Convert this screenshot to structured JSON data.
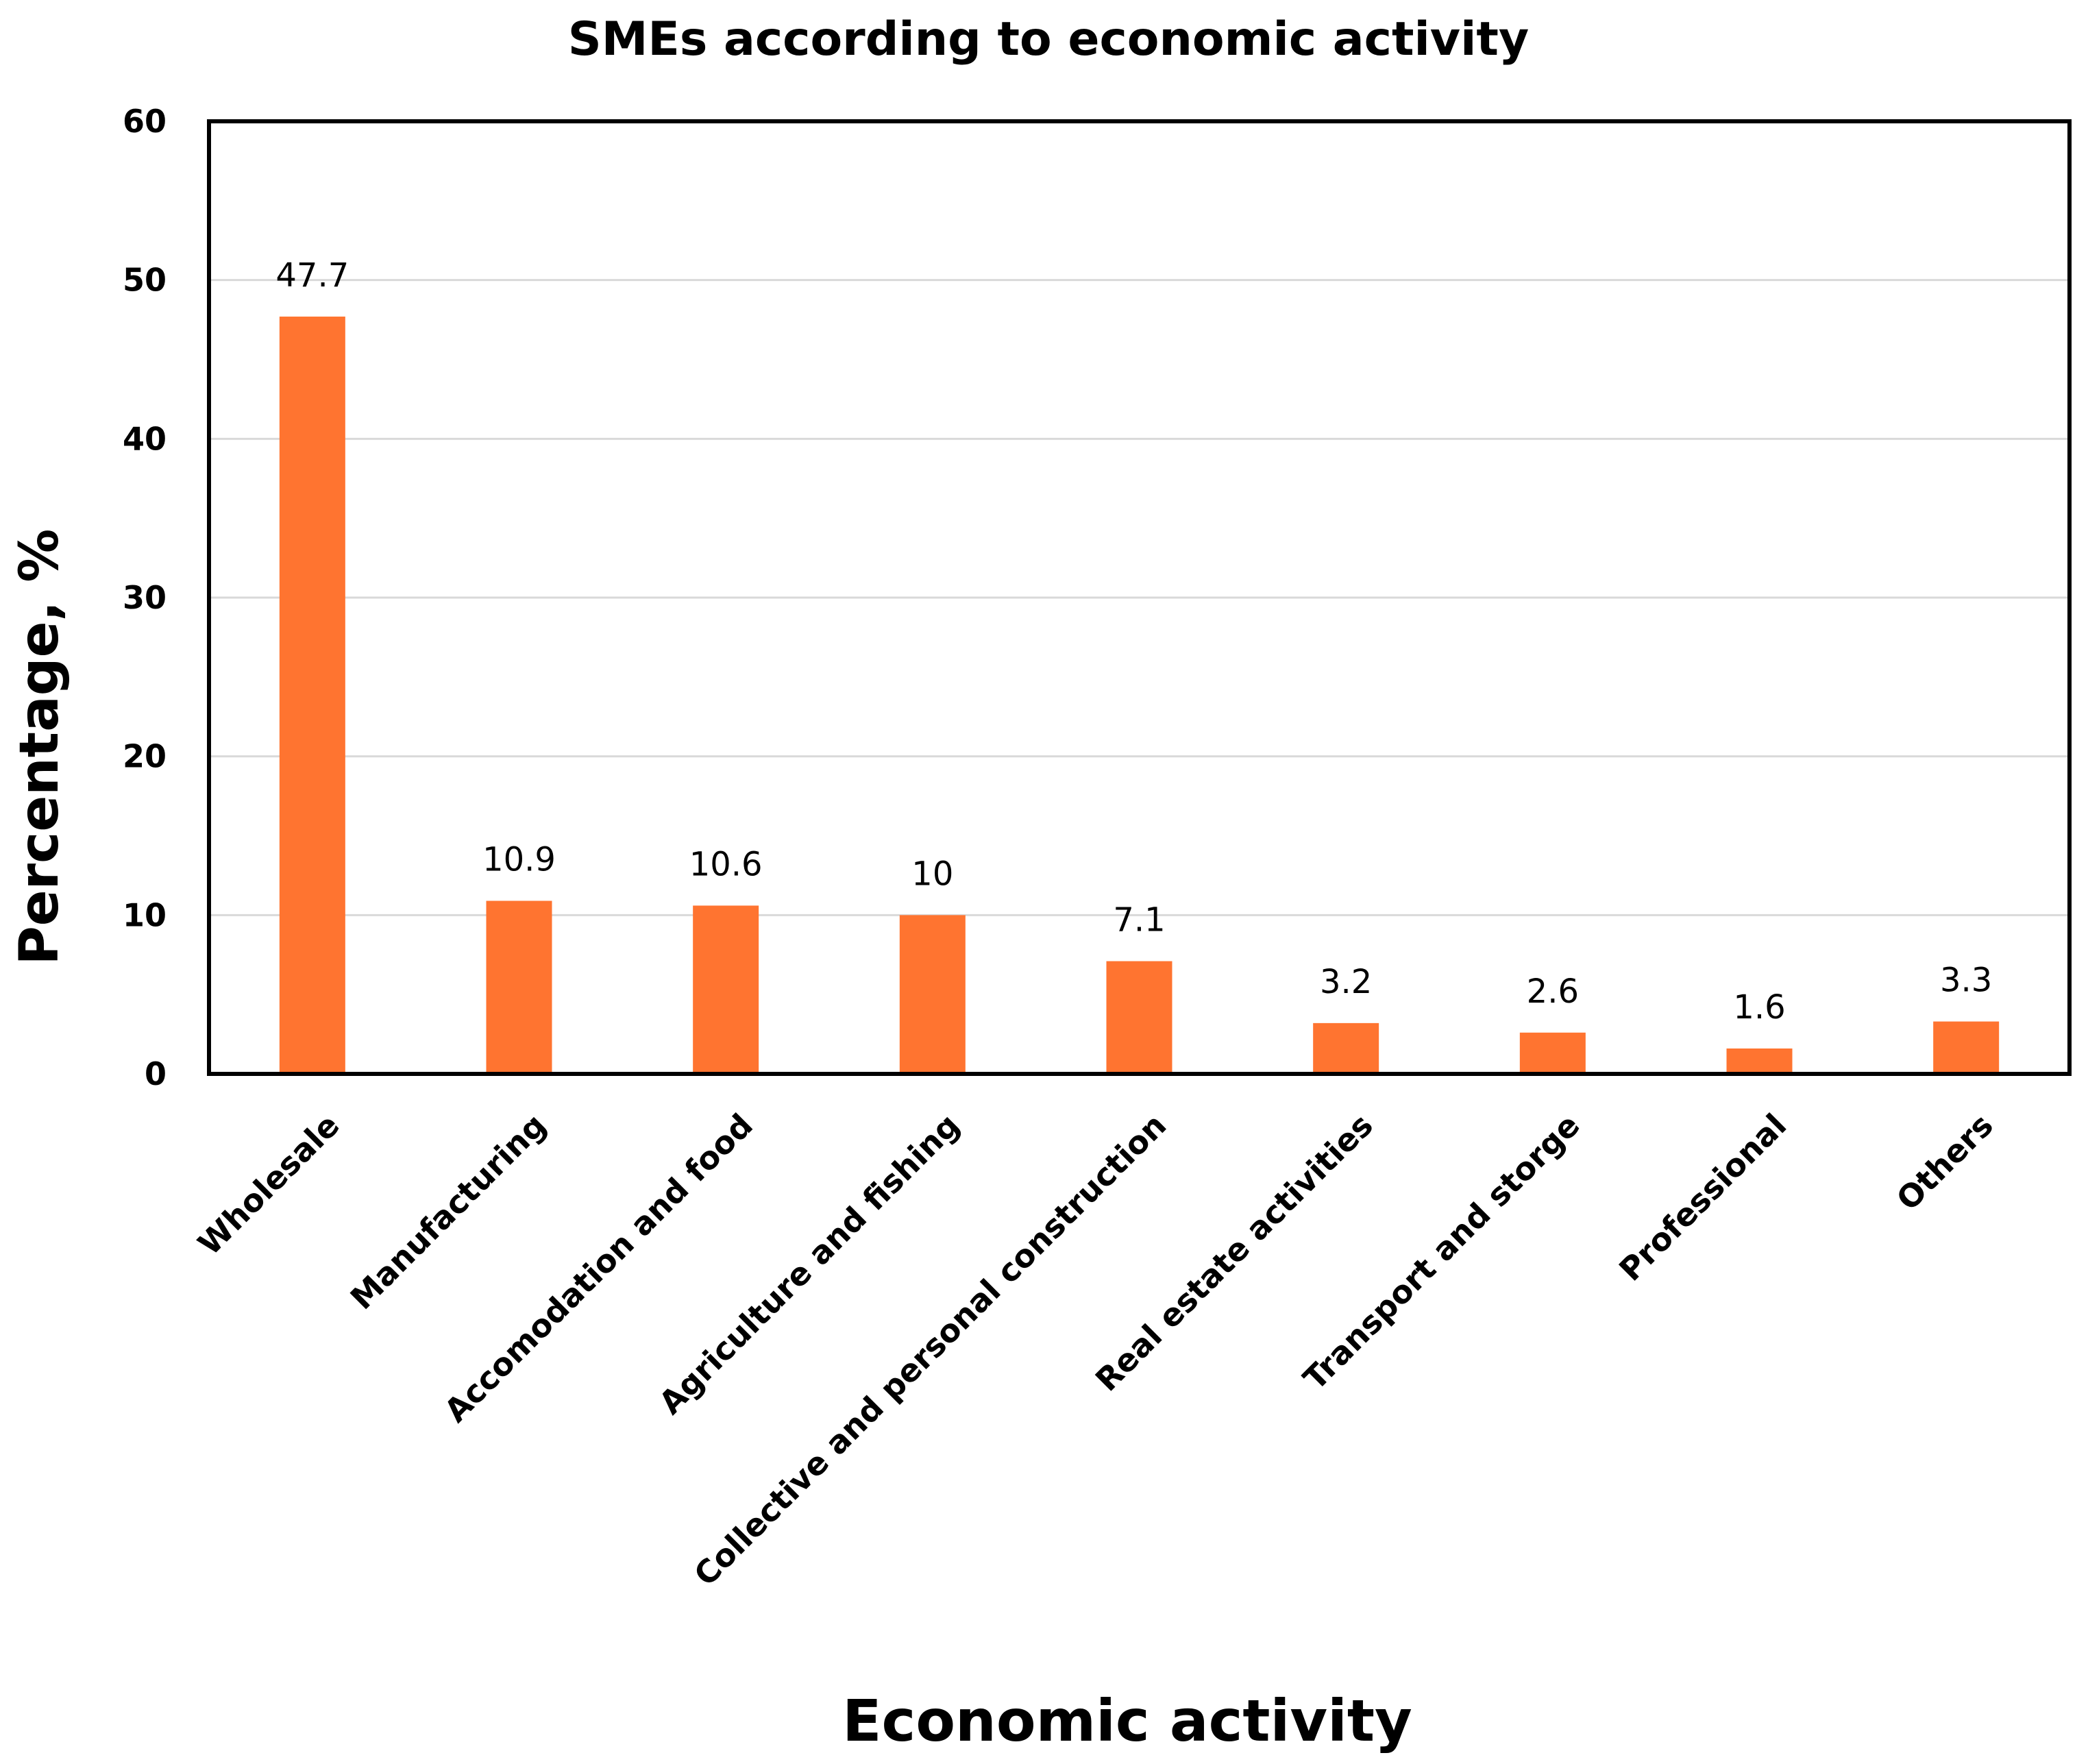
{
  "chart_data": {
    "type": "bar",
    "title": "SMEs according to economic activity",
    "xlabel": "Economic activity",
    "ylabel": "Percentage, %",
    "ylim": [
      0,
      60
    ],
    "yticks": [
      0,
      10,
      20,
      30,
      40,
      50,
      60
    ],
    "grid": true,
    "legend": "none",
    "categories": [
      "Wholesale",
      "Manufacturing",
      "Accomodation and food",
      "Agriculture and fishing",
      "Collective and personal construction",
      "Real estate activities",
      "Transport and storge",
      "Professional",
      "Others"
    ],
    "series": [
      {
        "name": "Percentage",
        "values": [
          47.7,
          10.9,
          10.6,
          10,
          7.1,
          3.2,
          2.6,
          1.6,
          3.3
        ],
        "labels": [
          "47.7",
          "10.9",
          "10.6",
          "10",
          "7.1",
          "3.2",
          "2.6",
          "1.6",
          "3.3"
        ]
      }
    ],
    "colors": {
      "bar": "#FF7430",
      "grid": "#d9d9d9",
      "frame": "#000000"
    }
  }
}
